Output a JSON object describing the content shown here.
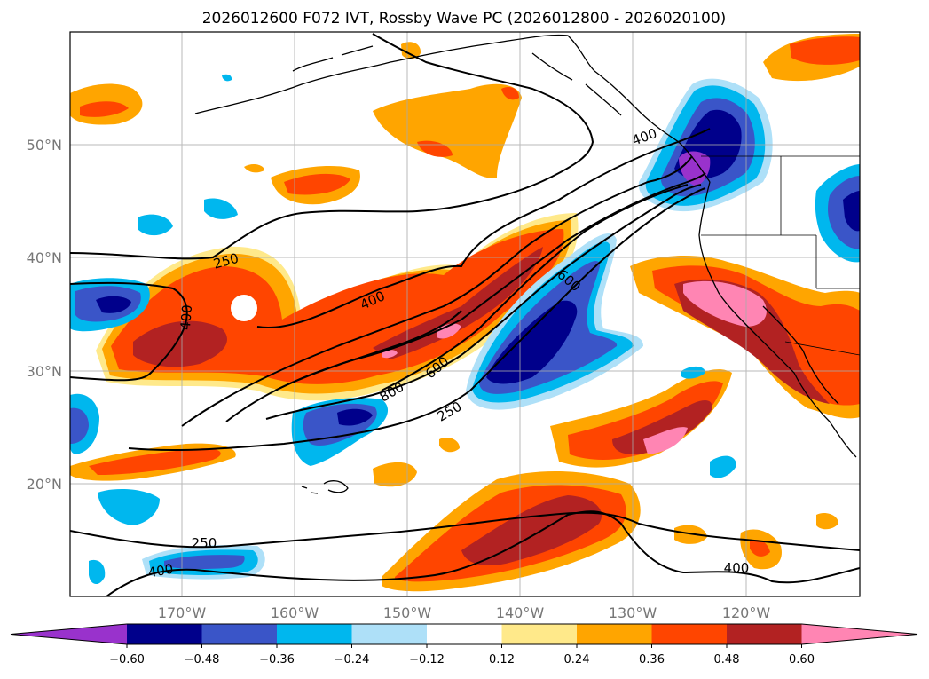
{
  "title": "2026012600 F072 IVT, Rossby Wave PC (2026012800 - 2026020100)",
  "lat_labels": [
    "50°N",
    "40°N",
    "30°N",
    "20°N"
  ],
  "lon_labels": [
    "170°W",
    "160°W",
    "150°W",
    "140°W",
    "130°W",
    "120°W"
  ],
  "contour_labels": [
    "250",
    "400",
    "400",
    "400",
    "600",
    "600",
    "800",
    "250",
    "250",
    "400",
    "400"
  ],
  "colorbar": {
    "ticks": [
      "−0.60",
      "−0.48",
      "−0.36",
      "−0.24",
      "−0.12",
      "0.12",
      "0.24",
      "0.36",
      "0.48",
      "0.60"
    ],
    "colors": [
      "#9932cc",
      "#00008b",
      "#3a55c8",
      "#00b7ee",
      "#aee0f8",
      "#ffffff",
      "#ffe98a",
      "#ffa500",
      "#ff4500",
      "#b22222",
      "#ff85b3"
    ]
  }
}
